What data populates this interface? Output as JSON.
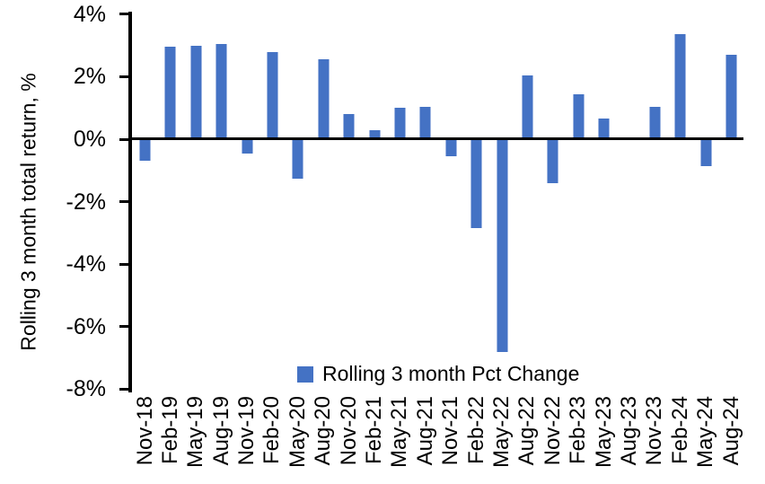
{
  "figure": {
    "bar_color": "#4472C4",
    "bar_edge_color": "#9FB6E2",
    "axis_color": "#000000",
    "background_color": "#FFFFFF"
  },
  "y_axis": {
    "title": "Rolling 3 month total return, %",
    "tick_labels": [
      "4%",
      "2%",
      "0%",
      "-2%",
      "-4%",
      "-6%",
      "-8%"
    ],
    "tick_values": [
      4,
      2,
      0,
      -2,
      -4,
      -6,
      -8
    ]
  },
  "legend": {
    "label": "Rolling 3 month Pct Change"
  },
  "chart_data": {
    "type": "bar",
    "title": "",
    "xlabel": "",
    "ylabel": "Rolling 3 month total return, %",
    "ylim": [
      -8,
      4
    ],
    "y_tick_step": 2,
    "grid": false,
    "legend_position": "bottom-center",
    "categories": [
      "Nov-18",
      "Feb-19",
      "May-19",
      "Aug-19",
      "Nov-19",
      "Feb-20",
      "May-20",
      "Aug-20",
      "Nov-20",
      "Feb-21",
      "May-21",
      "Aug-21",
      "Nov-21",
      "Feb-22",
      "May-22",
      "Aug-22",
      "Nov-22",
      "Feb-23",
      "May-23",
      "Aug-23",
      "Nov-23",
      "Feb-24",
      "May-24",
      "Aug-24"
    ],
    "series": [
      {
        "name": "Rolling 3 month Pct Change",
        "values": [
          -0.7,
          2.95,
          3.0,
          3.05,
          -0.45,
          2.8,
          -1.25,
          2.55,
          0.8,
          0.3,
          1.0,
          1.05,
          -0.55,
          -2.85,
          -6.8,
          2.05,
          -1.4,
          1.45,
          0.65,
          0.0,
          1.05,
          3.35,
          -0.85,
          2.7
        ]
      }
    ]
  }
}
